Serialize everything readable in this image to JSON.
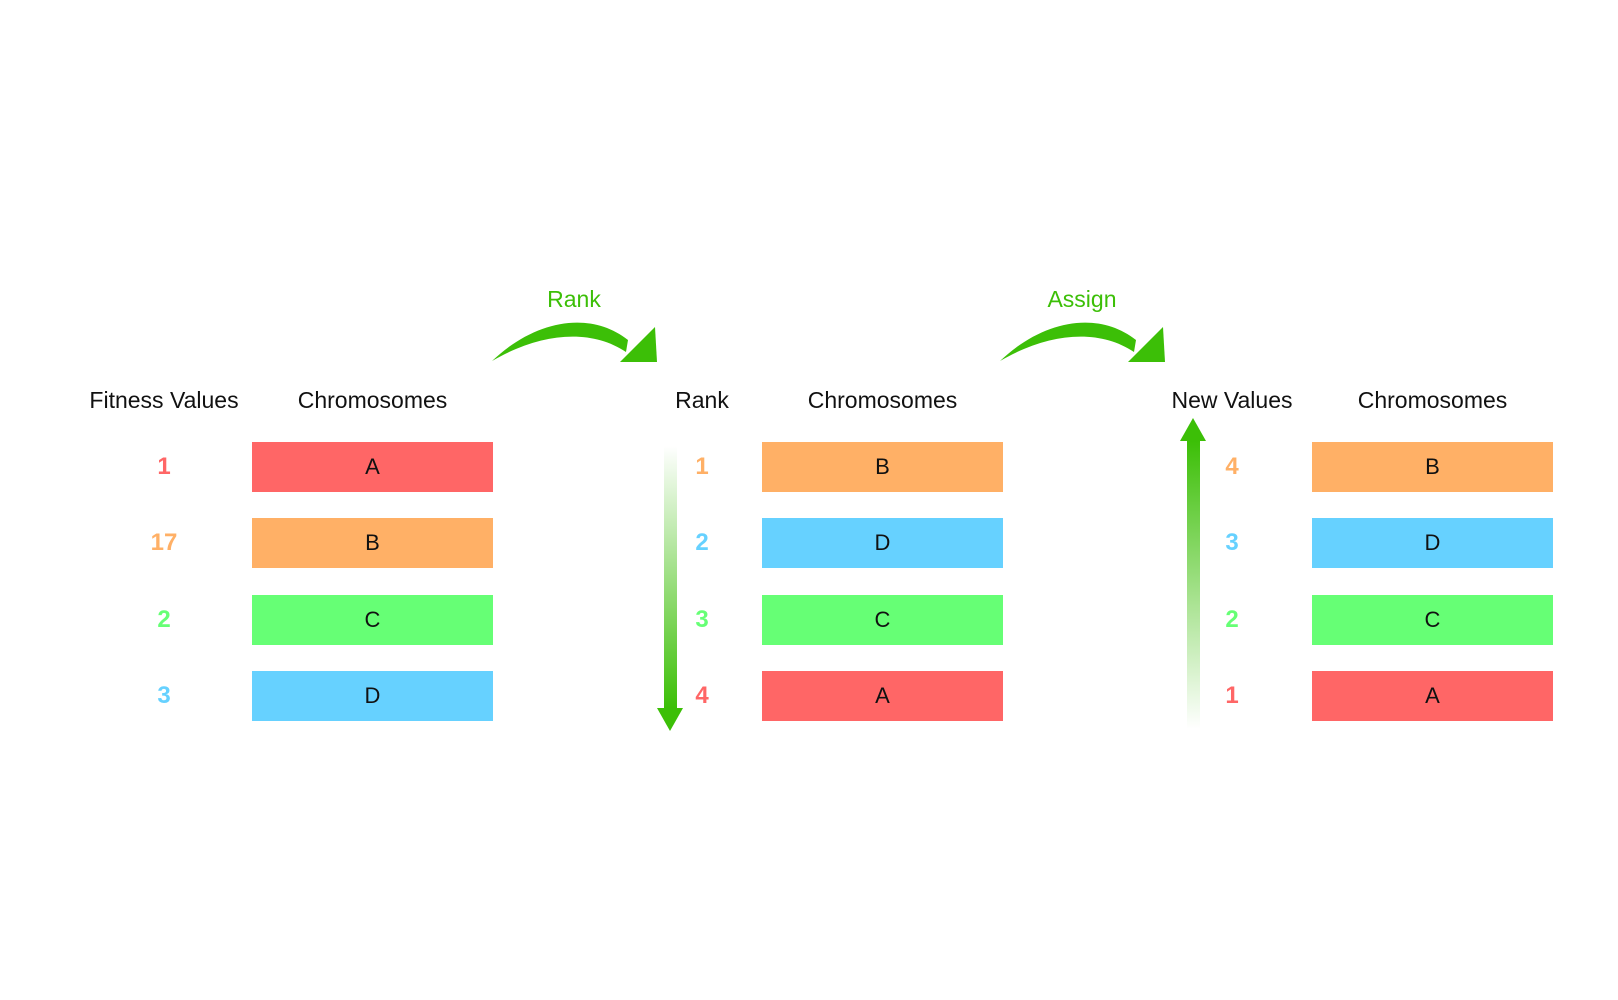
{
  "colors": {
    "A": "#ff6666",
    "B": "#ffb066",
    "C": "#66ff75",
    "D": "#66d1ff",
    "arrow": "#3cbf07",
    "label": "#3cbf07"
  },
  "steps": {
    "rank_label": "Rank",
    "assign_label": "Assign"
  },
  "panels": [
    {
      "value_header": "Fitness Values",
      "chrom_header": "Chromosomes",
      "rows": [
        {
          "value": "1",
          "chromosome": "A"
        },
        {
          "value": "17",
          "chromosome": "B"
        },
        {
          "value": "2",
          "chromosome": "C"
        },
        {
          "value": "3",
          "chromosome": "D"
        }
      ]
    },
    {
      "value_header": "Rank",
      "chrom_header": "Chromosomes",
      "rows": [
        {
          "value": "1",
          "chromosome": "B"
        },
        {
          "value": "2",
          "chromosome": "D"
        },
        {
          "value": "3",
          "chromosome": "C"
        },
        {
          "value": "4",
          "chromosome": "A"
        }
      ]
    },
    {
      "value_header": "New Values",
      "chrom_header": "Chromosomes",
      "rows": [
        {
          "value": "4",
          "chromosome": "B"
        },
        {
          "value": "3",
          "chromosome": "D"
        },
        {
          "value": "2",
          "chromosome": "C"
        },
        {
          "value": "1",
          "chromosome": "A"
        }
      ]
    }
  ]
}
